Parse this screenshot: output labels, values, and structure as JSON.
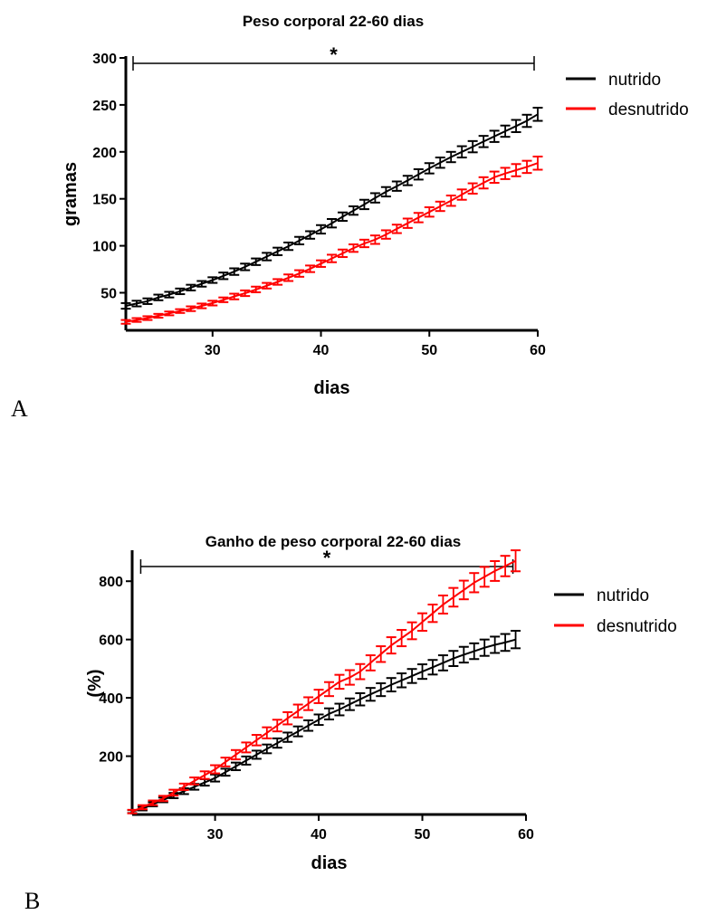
{
  "chart_data": [
    {
      "type": "line",
      "panel_label": "A",
      "title": "Peso corporal 22-60 dias",
      "xlabel": "dias",
      "ylabel": "gramas",
      "xlim": [
        22,
        60
      ],
      "ylim": [
        10,
        300
      ],
      "x_ticks": [
        30,
        40,
        50,
        60
      ],
      "y_ticks": [
        50,
        100,
        150,
        200,
        250,
        300
      ],
      "significance_label": "*",
      "significance_range": [
        22,
        60
      ],
      "legend_position": "right",
      "series": [
        {
          "name": "nutrido",
          "color": "#000000",
          "x": [
            22,
            23,
            24,
            25,
            26,
            27,
            28,
            29,
            30,
            31,
            32,
            33,
            34,
            35,
            36,
            37,
            38,
            39,
            40,
            41,
            42,
            43,
            44,
            45,
            46,
            47,
            48,
            49,
            50,
            51,
            52,
            53,
            54,
            55,
            56,
            57,
            58,
            59,
            60
          ],
          "values": [
            36,
            38.5,
            41,
            45,
            48,
            51.5,
            55.5,
            59.5,
            63.5,
            68,
            72.5,
            77.5,
            83,
            88.5,
            94,
            99.5,
            105.5,
            111.5,
            117.5,
            124,
            131,
            137.5,
            144,
            151,
            157.5,
            163.5,
            169.5,
            176,
            182.5,
            188.5,
            194.5,
            200,
            205.5,
            211,
            216.5,
            222,
            227.5,
            233,
            240
          ],
          "error": [
            3,
            3,
            3,
            3,
            3,
            3,
            3,
            3,
            3,
            3.5,
            3.5,
            3.5,
            3.5,
            4,
            4,
            4,
            4,
            4,
            4.5,
            4.5,
            4.5,
            4.5,
            5,
            5,
            5,
            5,
            5,
            5.5,
            5.5,
            5.5,
            5.5,
            6,
            6,
            6,
            6,
            6,
            6.5,
            6.5,
            7
          ]
        },
        {
          "name": "desnutrido",
          "color": "#ff0000",
          "x": [
            22,
            23,
            24,
            25,
            26,
            27,
            28,
            29,
            30,
            31,
            32,
            33,
            34,
            35,
            36,
            37,
            38,
            39,
            40,
            41,
            42,
            43,
            44,
            45,
            46,
            47,
            48,
            49,
            50,
            51,
            52,
            53,
            54,
            55,
            56,
            57,
            58,
            59,
            60
          ],
          "values": [
            19,
            21,
            23,
            25.5,
            28,
            30.5,
            33,
            36,
            39,
            42.5,
            46,
            49.5,
            53.5,
            57.5,
            61.5,
            66,
            70.5,
            75.5,
            81,
            86.5,
            92,
            97.5,
            102.5,
            106.5,
            112,
            118,
            124,
            130,
            136,
            142,
            148,
            154.5,
            161,
            167,
            173,
            177,
            180.5,
            184,
            188
          ],
          "error": [
            2,
            2,
            2,
            2,
            2,
            2,
            2.5,
            2.5,
            2.5,
            2.5,
            3,
            3,
            3,
            3,
            3,
            3.5,
            3.5,
            3.5,
            3.5,
            4,
            4,
            4,
            4,
            4.5,
            4.5,
            4.5,
            5,
            5,
            5,
            5,
            5.5,
            5.5,
            5.5,
            6,
            6,
            6,
            6.5,
            6.5,
            7
          ]
        }
      ]
    },
    {
      "type": "line",
      "panel_label": "B",
      "title": "Ganho de peso corporal 22-60 dias",
      "xlabel": "dias",
      "ylabel": "(%)",
      "xlim": [
        22,
        60
      ],
      "ylim": [
        0,
        900
      ],
      "x_ticks": [
        30,
        40,
        50,
        60
      ],
      "y_ticks": [
        200,
        400,
        600,
        800
      ],
      "significance_label": "*",
      "significance_range": [
        23,
        59
      ],
      "legend_position": "right",
      "series": [
        {
          "name": "nutrido",
          "color": "#000000",
          "x": [
            22,
            23,
            24,
            25,
            26,
            27,
            28,
            29,
            30,
            31,
            32,
            33,
            34,
            35,
            36,
            37,
            38,
            39,
            40,
            41,
            42,
            43,
            44,
            45,
            46,
            47,
            48,
            49,
            50,
            51,
            52,
            53,
            54,
            55,
            56,
            57,
            58,
            59
          ],
          "values": [
            10,
            20,
            35,
            50,
            65,
            80,
            95,
            110,
            125,
            145,
            165,
            185,
            205,
            225,
            245,
            265,
            285,
            305,
            325,
            345,
            360,
            378,
            395,
            412,
            428,
            445,
            460,
            475,
            490,
            505,
            520,
            535,
            548,
            560,
            572,
            582,
            590,
            600
          ],
          "error": [
            5,
            6,
            7,
            8,
            9,
            10,
            10,
            11,
            12,
            12,
            13,
            14,
            14,
            15,
            16,
            16,
            17,
            18,
            18,
            19,
            20,
            20,
            21,
            22,
            22,
            23,
            24,
            24,
            25,
            25,
            26,
            26,
            27,
            27,
            28,
            28,
            29,
            30
          ]
        },
        {
          "name": "desnutrido",
          "color": "#ff0000",
          "x": [
            22,
            23,
            24,
            25,
            26,
            27,
            28,
            29,
            30,
            31,
            32,
            33,
            34,
            35,
            36,
            37,
            38,
            39,
            40,
            41,
            42,
            43,
            44,
            45,
            46,
            47,
            48,
            49,
            50,
            51,
            52,
            53,
            54,
            55,
            56,
            57,
            58,
            59
          ],
          "values": [
            10,
            25,
            40,
            55,
            75,
            95,
            115,
            135,
            155,
            180,
            205,
            230,
            255,
            280,
            305,
            330,
            355,
            380,
            405,
            430,
            455,
            470,
            490,
            520,
            550,
            580,
            605,
            630,
            660,
            690,
            720,
            745,
            770,
            795,
            815,
            835,
            852,
            870
          ],
          "error": [
            6,
            7,
            8,
            9,
            10,
            11,
            12,
            13,
            14,
            15,
            16,
            17,
            18,
            19,
            20,
            21,
            22,
            22,
            23,
            24,
            24,
            25,
            26,
            26,
            27,
            28,
            28,
            29,
            30,
            30,
            31,
            32,
            32,
            33,
            34,
            34,
            35,
            36
          ]
        }
      ]
    }
  ]
}
